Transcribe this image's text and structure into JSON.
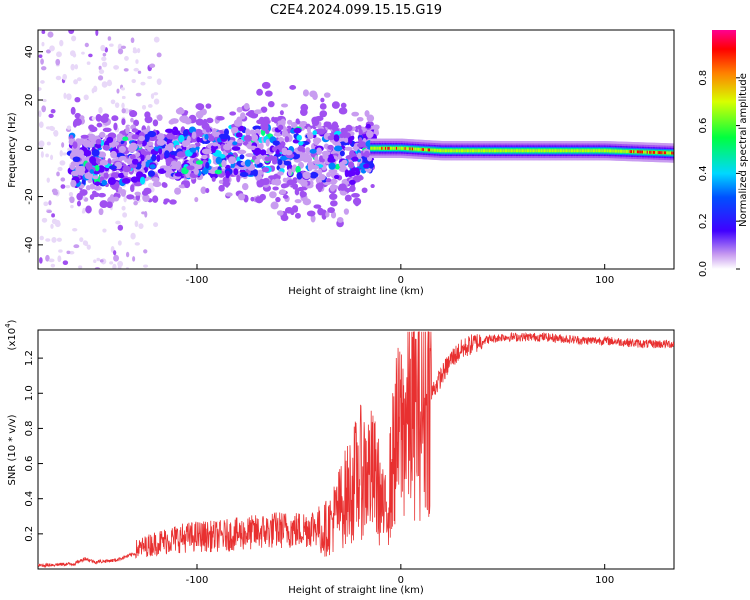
{
  "title": "C2E4.2024.099.15.15.G19",
  "colors": {
    "snr_line": "#e83030",
    "axis": "#000000",
    "background": "#ffffff"
  },
  "chart_data": [
    {
      "type": "heatmap",
      "xlabel": "Height of straight line (km)",
      "ylabel": "Frequency (Hz)",
      "xlim": [
        -178,
        134
      ],
      "ylim": [
        -50,
        49
      ],
      "xticks": [
        -100,
        0,
        100
      ],
      "yticks": [
        -40,
        -20,
        0,
        20,
        40
      ],
      "colorbar": {
        "label": "Normalized spectral amplitude",
        "range": [
          0.0,
          1.0
        ],
        "ticks": [
          0.0,
          0.2,
          0.4,
          0.6,
          0.8
        ],
        "tick_labels": [
          "0.0",
          "0.2",
          "0.4",
          "0.6",
          "0.8"
        ],
        "colormap": "rainbow (violet to red)"
      },
      "band_center_hz": [
        {
          "x": -160,
          "y": -6
        },
        {
          "x": -120,
          "y": -3
        },
        {
          "x": -80,
          "y": -1
        },
        {
          "x": -50,
          "y": -2
        },
        {
          "x": -25,
          "y": -5
        },
        {
          "x": -15,
          "y": 0
        },
        {
          "x": 0,
          "y": 0
        },
        {
          "x": 20,
          "y": -1
        },
        {
          "x": 60,
          "y": -1
        },
        {
          "x": 100,
          "y": -1
        },
        {
          "x": 134,
          "y": -2
        }
      ]
    },
    {
      "type": "line",
      "xlabel": "Height of straight line (km)",
      "ylabel": "SNR (10 * v/v)",
      "scale_label": "(x10",
      "scale_exponent": "4",
      "xlim": [
        -178,
        134
      ],
      "ylim": [
        0.0,
        1.36
      ],
      "xticks": [
        -100,
        0,
        100
      ],
      "yticks": [
        0.2,
        0.4,
        0.6,
        0.8,
        1.0,
        1.2
      ],
      "ytick_labels": [
        "0.2",
        "0.4",
        "0.6",
        "0.8",
        "1.0",
        "1.2"
      ],
      "series": [
        {
          "x": [
            -178,
            -160,
            -155,
            -150,
            -140,
            -130,
            -120,
            -110,
            -100,
            -90,
            -80,
            -70,
            -60,
            -50,
            -40,
            -35,
            -30,
            -25,
            -20,
            -15,
            -12,
            -10,
            -8,
            -5,
            -3,
            0,
            3,
            5,
            10,
            15,
            20,
            25,
            30,
            35,
            40,
            45,
            50,
            60,
            70,
            80,
            90,
            100,
            110,
            120,
            134
          ],
          "y": [
            0.02,
            0.03,
            0.06,
            0.04,
            0.05,
            0.09,
            0.12,
            0.14,
            0.15,
            0.15,
            0.16,
            0.17,
            0.18,
            0.18,
            0.2,
            0.25,
            0.35,
            0.45,
            0.55,
            0.55,
            0.5,
            0.4,
            0.3,
            0.5,
            0.7,
            0.8,
            0.85,
            0.9,
            0.9,
            1.0,
            1.1,
            1.2,
            1.25,
            1.28,
            1.3,
            1.31,
            1.32,
            1.32,
            1.32,
            1.31,
            1.3,
            1.3,
            1.29,
            1.28,
            1.28
          ]
        }
      ]
    }
  ]
}
